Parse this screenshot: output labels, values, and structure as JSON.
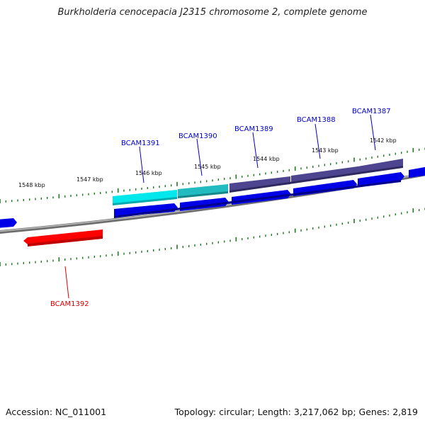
{
  "header": {
    "title": "Burkholderia cenocepacia J2315 chromosome 2, complete genome"
  },
  "footer": {
    "accession": "Accession: NC_011001",
    "summary": "Topology: circular; Length: 3,217,062 bp; Genes: 2,819"
  },
  "scale": {
    "ticks": [
      {
        "label": "1548 kbp"
      },
      {
        "label": "1547 kbp"
      },
      {
        "label": "1546 kbp"
      },
      {
        "label": "1545 kbp"
      },
      {
        "label": "1544 kbp"
      },
      {
        "label": "1543 kbp"
      },
      {
        "label": "1542 kbp"
      }
    ]
  },
  "genes": [
    {
      "label": "BCAM1391",
      "color": "#00e8ec",
      "strand": "forward"
    },
    {
      "label": "BCAM1390",
      "color": "#1ab4b8",
      "strand": "forward"
    },
    {
      "label": "BCAM1389",
      "color": "#4b3f8c",
      "strand": "forward"
    },
    {
      "label": "BCAM1388",
      "color": "#4b3f8c",
      "strand": "forward"
    },
    {
      "label": "BCAM1387",
      "color": "#4b3f8c",
      "strand": "forward"
    },
    {
      "label": "BCAM1392",
      "color": "#ff0000",
      "strand": "reverse"
    }
  ],
  "colors": {
    "backbone": "#808080",
    "cds": "#0000e6",
    "tick": "#1e7a1e",
    "label_forward": "#0000cc",
    "label_reverse": "#dd0000"
  }
}
